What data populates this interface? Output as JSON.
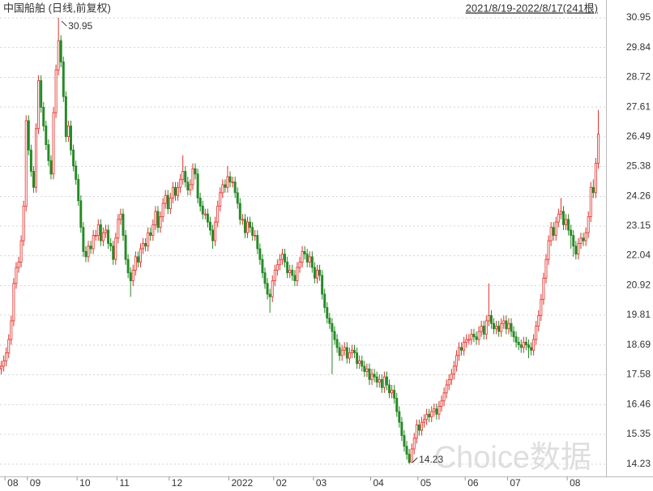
{
  "chart_data": {
    "type": "candlestick",
    "title": "中国船舶 (日线,前复权)",
    "subtitle": "2021/8/19-2022/8/17(241根)",
    "watermark": "Choice数据",
    "up_color": "#e0302a",
    "down_color": "#268a26",
    "grid": true,
    "ylim": [
      13.77,
      31.62
    ],
    "yticks": [
      14.23,
      15.35,
      16.46,
      17.58,
      18.69,
      19.81,
      20.92,
      22.04,
      23.15,
      24.26,
      25.38,
      26.49,
      27.61,
      28.72,
      29.84,
      30.95
    ],
    "xlim": [
      0,
      241
    ],
    "xticks": [
      {
        "value": 2,
        "label": "08"
      },
      {
        "value": 11,
        "label": "09"
      },
      {
        "value": 31,
        "label": "10"
      },
      {
        "value": 47,
        "label": "11"
      },
      {
        "value": 68,
        "label": "12"
      },
      {
        "value": 92,
        "label": "2022"
      },
      {
        "value": 110,
        "label": "02"
      },
      {
        "value": 126,
        "label": "03"
      },
      {
        "value": 149,
        "label": "04"
      },
      {
        "value": 168,
        "label": "05"
      },
      {
        "value": 187,
        "label": "06"
      },
      {
        "value": 204,
        "label": "07"
      },
      {
        "value": 228,
        "label": "08"
      }
    ],
    "annotations": [
      {
        "label": "30.95"
      },
      {
        "label": "14.23"
      }
    ],
    "candles": [
      [
        17.8,
        18.1,
        17.6,
        17.9
      ],
      [
        17.9,
        18.3,
        17.7,
        18.1
      ],
      [
        18.1,
        18.6,
        17.9,
        18.4
      ],
      [
        18.4,
        19.1,
        18.2,
        18.9
      ],
      [
        18.9,
        19.8,
        18.7,
        19.6
      ],
      [
        19.6,
        21.2,
        19.4,
        21.0
      ],
      [
        21.0,
        21.8,
        20.8,
        21.6
      ],
      [
        21.6,
        22.0,
        21.4,
        21.8
      ],
      [
        21.8,
        22.8,
        21.6,
        22.6
      ],
      [
        22.6,
        24.1,
        22.4,
        23.9
      ],
      [
        23.9,
        27.3,
        23.7,
        27.1
      ],
      [
        27.1,
        27.3,
        25.8,
        26.0
      ],
      [
        26.0,
        26.2,
        25.0,
        25.2
      ],
      [
        25.2,
        25.4,
        24.4,
        24.6
      ],
      [
        24.6,
        27.0,
        24.4,
        26.8
      ],
      [
        26.8,
        28.8,
        26.6,
        28.6
      ],
      [
        28.6,
        28.8,
        27.4,
        27.6
      ],
      [
        27.6,
        27.8,
        26.7,
        26.9
      ],
      [
        26.9,
        27.1,
        26.0,
        26.2
      ],
      [
        26.2,
        26.4,
        25.4,
        25.6
      ],
      [
        25.6,
        25.8,
        24.9,
        25.1
      ],
      [
        25.1,
        27.6,
        24.9,
        27.4
      ],
      [
        27.4,
        29.2,
        27.2,
        29.0
      ],
      [
        29.0,
        30.95,
        28.8,
        30.1
      ],
      [
        30.1,
        30.3,
        29.1,
        29.3
      ],
      [
        29.3,
        29.5,
        27.8,
        28.0
      ],
      [
        28.0,
        28.2,
        26.3,
        26.5
      ],
      [
        26.5,
        27.1,
        26.3,
        26.9
      ],
      [
        26.9,
        27.1,
        25.8,
        26.0
      ],
      [
        26.0,
        26.2,
        25.2,
        25.4
      ],
      [
        25.4,
        25.6,
        24.7,
        24.9
      ],
      [
        24.9,
        25.1,
        23.9,
        24.1
      ],
      [
        24.1,
        24.3,
        22.9,
        23.1
      ],
      [
        23.1,
        23.3,
        22.0,
        22.2
      ],
      [
        22.2,
        22.4,
        21.8,
        22.0
      ],
      [
        22.0,
        22.6,
        21.8,
        22.4
      ],
      [
        22.4,
        22.6,
        22.1,
        22.3
      ],
      [
        22.3,
        23.0,
        22.1,
        22.8
      ],
      [
        22.8,
        23.0,
        22.6,
        22.8
      ],
      [
        22.8,
        23.4,
        22.6,
        23.2
      ],
      [
        23.2,
        23.4,
        22.4,
        22.6
      ],
      [
        22.6,
        23.1,
        22.4,
        22.9
      ],
      [
        22.9,
        23.2,
        22.7,
        23.0
      ],
      [
        23.0,
        23.2,
        22.3,
        22.5
      ],
      [
        22.5,
        22.7,
        22.2,
        22.4
      ],
      [
        22.4,
        22.6,
        21.7,
        21.9
      ],
      [
        21.9,
        22.9,
        21.7,
        22.7
      ],
      [
        22.7,
        23.6,
        22.5,
        23.4
      ],
      [
        23.4,
        23.8,
        23.2,
        23.6
      ],
      [
        23.6,
        23.8,
        22.6,
        22.8
      ],
      [
        22.8,
        23.0,
        21.7,
        21.9
      ],
      [
        21.9,
        22.1,
        21.2,
        21.4
      ],
      [
        21.4,
        21.6,
        20.5,
        21.1
      ],
      [
        21.1,
        21.7,
        20.9,
        21.5
      ],
      [
        21.5,
        22.2,
        21.3,
        22.0
      ],
      [
        22.0,
        22.2,
        21.6,
        21.8
      ],
      [
        21.8,
        22.5,
        21.6,
        22.3
      ],
      [
        22.3,
        22.7,
        22.1,
        22.5
      ],
      [
        22.5,
        22.7,
        22.2,
        22.4
      ],
      [
        22.4,
        23.1,
        22.2,
        22.9
      ],
      [
        22.9,
        23.1,
        22.6,
        22.8
      ],
      [
        22.8,
        23.4,
        22.6,
        23.2
      ],
      [
        23.2,
        23.9,
        23.0,
        23.7
      ],
      [
        23.7,
        23.9,
        22.9,
        23.1
      ],
      [
        23.1,
        23.7,
        22.9,
        23.5
      ],
      [
        23.5,
        24.2,
        23.3,
        24.0
      ],
      [
        24.0,
        24.5,
        23.8,
        24.3
      ],
      [
        24.3,
        24.5,
        23.6,
        23.8
      ],
      [
        23.8,
        24.4,
        23.6,
        24.2
      ],
      [
        24.2,
        24.8,
        24.0,
        24.6
      ],
      [
        24.6,
        24.8,
        24.1,
        24.3
      ],
      [
        24.3,
        24.8,
        24.1,
        24.6
      ],
      [
        24.6,
        25.1,
        24.4,
        24.9
      ],
      [
        24.9,
        25.8,
        24.7,
        25.2
      ],
      [
        25.2,
        25.4,
        24.6,
        24.8
      ],
      [
        24.8,
        25.0,
        24.3,
        24.5
      ],
      [
        24.5,
        24.9,
        24.3,
        24.7
      ],
      [
        24.7,
        25.5,
        24.5,
        25.3
      ],
      [
        25.3,
        25.5,
        24.9,
        25.1
      ],
      [
        25.1,
        25.3,
        24.0,
        24.2
      ],
      [
        24.2,
        24.4,
        23.7,
        23.9
      ],
      [
        23.9,
        24.1,
        23.4,
        23.6
      ],
      [
        23.6,
        23.8,
        23.4,
        23.6
      ],
      [
        23.6,
        23.8,
        23.1,
        23.3
      ],
      [
        23.3,
        23.5,
        22.8,
        23.0
      ],
      [
        23.0,
        23.2,
        22.3,
        22.6
      ],
      [
        22.6,
        23.5,
        22.4,
        23.3
      ],
      [
        23.3,
        24.1,
        23.1,
        23.9
      ],
      [
        23.9,
        24.6,
        23.7,
        24.4
      ],
      [
        24.4,
        24.9,
        24.2,
        24.7
      ],
      [
        24.7,
        24.9,
        24.4,
        24.6
      ],
      [
        24.6,
        25.4,
        24.4,
        25.0
      ],
      [
        25.0,
        25.2,
        24.6,
        24.8
      ],
      [
        24.8,
        25.0,
        24.6,
        24.8
      ],
      [
        24.8,
        25.0,
        24.2,
        24.4
      ],
      [
        24.4,
        24.6,
        23.8,
        24.0
      ],
      [
        24.0,
        24.2,
        23.2,
        23.4
      ],
      [
        23.4,
        23.6,
        23.2,
        23.4
      ],
      [
        23.4,
        23.6,
        22.7,
        22.9
      ],
      [
        22.9,
        23.5,
        22.7,
        23.3
      ],
      [
        23.3,
        23.5,
        22.9,
        23.1
      ],
      [
        23.1,
        23.3,
        22.6,
        22.8
      ],
      [
        22.8,
        23.0,
        22.6,
        22.8
      ],
      [
        22.8,
        23.0,
        22.1,
        22.3
      ],
      [
        22.3,
        22.5,
        21.7,
        21.9
      ],
      [
        21.9,
        22.1,
        21.2,
        21.4
      ],
      [
        21.4,
        21.6,
        20.8,
        21.0
      ],
      [
        21.0,
        21.2,
        20.4,
        20.6
      ],
      [
        20.6,
        20.8,
        19.9,
        20.5
      ],
      [
        20.5,
        21.3,
        20.3,
        21.1
      ],
      [
        21.1,
        21.7,
        20.9,
        21.5
      ],
      [
        21.5,
        21.9,
        21.3,
        21.7
      ],
      [
        21.7,
        22.1,
        21.5,
        21.9
      ],
      [
        21.9,
        22.3,
        21.7,
        22.1
      ],
      [
        22.1,
        22.3,
        21.6,
        21.8
      ],
      [
        21.8,
        22.0,
        21.2,
        21.4
      ],
      [
        21.4,
        21.7,
        21.2,
        21.5
      ],
      [
        21.5,
        21.7,
        21.1,
        21.3
      ],
      [
        21.3,
        21.5,
        20.9,
        21.1
      ],
      [
        21.1,
        21.8,
        20.9,
        21.6
      ],
      [
        21.6,
        22.0,
        21.4,
        21.8
      ],
      [
        21.8,
        22.4,
        21.6,
        22.2
      ],
      [
        22.2,
        22.4,
        21.9,
        22.1
      ],
      [
        22.1,
        22.3,
        21.6,
        21.8
      ],
      [
        21.8,
        22.2,
        21.6,
        22.0
      ],
      [
        22.0,
        22.2,
        21.4,
        21.6
      ],
      [
        21.6,
        21.8,
        21.0,
        21.2
      ],
      [
        21.2,
        21.7,
        21.0,
        21.5
      ],
      [
        21.5,
        21.7,
        21.1,
        21.3
      ],
      [
        21.3,
        21.5,
        20.4,
        20.6
      ],
      [
        20.6,
        20.8,
        19.9,
        20.1
      ],
      [
        20.1,
        20.3,
        19.5,
        19.7
      ],
      [
        19.7,
        19.9,
        19.3,
        19.5
      ],
      [
        19.5,
        19.7,
        17.6,
        19.2
      ],
      [
        19.2,
        19.4,
        18.7,
        18.9
      ],
      [
        18.9,
        19.1,
        18.4,
        18.6
      ],
      [
        18.6,
        18.8,
        18.1,
        18.3
      ],
      [
        18.3,
        18.7,
        18.1,
        18.5
      ],
      [
        18.5,
        18.8,
        18.3,
        18.6
      ],
      [
        18.6,
        18.8,
        18.0,
        18.2
      ],
      [
        18.2,
        18.6,
        18.0,
        18.4
      ],
      [
        18.4,
        18.7,
        18.2,
        18.5
      ],
      [
        18.5,
        18.7,
        18.2,
        18.4
      ],
      [
        18.4,
        18.6,
        17.8,
        18.0
      ],
      [
        18.0,
        18.3,
        17.8,
        18.1
      ],
      [
        18.1,
        18.3,
        17.7,
        17.9
      ],
      [
        17.9,
        18.1,
        17.5,
        17.7
      ],
      [
        17.7,
        18.0,
        17.5,
        17.8
      ],
      [
        17.8,
        18.0,
        17.2,
        17.4
      ],
      [
        17.4,
        17.8,
        17.2,
        17.6
      ],
      [
        17.6,
        17.8,
        17.3,
        17.5
      ],
      [
        17.5,
        17.7,
        17.1,
        17.3
      ],
      [
        17.3,
        17.6,
        17.1,
        17.4
      ],
      [
        17.4,
        17.6,
        16.9,
        17.1
      ],
      [
        17.1,
        17.7,
        16.9,
        17.5
      ],
      [
        17.5,
        17.7,
        17.0,
        17.2
      ],
      [
        17.2,
        17.4,
        16.7,
        16.9
      ],
      [
        16.9,
        17.2,
        16.7,
        17.0
      ],
      [
        17.0,
        17.2,
        16.5,
        16.7
      ],
      [
        16.7,
        16.9,
        16.0,
        16.2
      ],
      [
        16.2,
        16.4,
        15.6,
        15.8
      ],
      [
        15.8,
        16.0,
        15.1,
        15.3
      ],
      [
        15.3,
        15.5,
        14.7,
        14.9
      ],
      [
        14.9,
        15.1,
        14.4,
        14.6
      ],
      [
        14.6,
        14.8,
        14.23,
        14.3
      ],
      [
        14.3,
        15.0,
        14.3,
        14.8
      ],
      [
        14.8,
        15.4,
        14.6,
        15.2
      ],
      [
        15.2,
        15.9,
        15.0,
        15.7
      ],
      [
        15.7,
        15.9,
        15.3,
        15.5
      ],
      [
        15.5,
        16.0,
        15.3,
        15.8
      ],
      [
        15.8,
        16.1,
        15.6,
        15.9
      ],
      [
        15.9,
        16.3,
        15.7,
        16.1
      ],
      [
        16.1,
        16.3,
        15.8,
        16.0
      ],
      [
        16.0,
        16.4,
        15.8,
        16.2
      ],
      [
        16.2,
        16.5,
        16.0,
        16.3
      ],
      [
        16.3,
        16.5,
        15.9,
        16.1
      ],
      [
        16.1,
        16.6,
        15.9,
        16.4
      ],
      [
        16.4,
        16.8,
        16.2,
        16.6
      ],
      [
        16.6,
        17.1,
        16.4,
        16.9
      ],
      [
        16.9,
        17.4,
        16.7,
        17.2
      ],
      [
        17.2,
        17.6,
        17.0,
        17.4
      ],
      [
        17.4,
        17.8,
        17.2,
        17.6
      ],
      [
        17.6,
        18.1,
        17.4,
        17.9
      ],
      [
        17.9,
        18.5,
        17.7,
        18.3
      ],
      [
        18.3,
        18.8,
        18.1,
        18.6
      ],
      [
        18.6,
        18.8,
        18.3,
        18.5
      ],
      [
        18.5,
        19.0,
        18.3,
        18.8
      ],
      [
        18.8,
        19.1,
        18.6,
        18.9
      ],
      [
        18.9,
        19.1,
        18.7,
        18.9
      ],
      [
        18.9,
        19.3,
        18.7,
        19.1
      ],
      [
        19.1,
        19.3,
        18.8,
        19.0
      ],
      [
        19.0,
        19.2,
        18.7,
        18.9
      ],
      [
        18.9,
        19.4,
        18.7,
        19.2
      ],
      [
        19.2,
        19.6,
        19.0,
        19.4
      ],
      [
        19.4,
        19.6,
        18.9,
        19.1
      ],
      [
        19.1,
        19.8,
        18.9,
        19.6
      ],
      [
        19.6,
        21.0,
        19.4,
        19.8
      ],
      [
        19.8,
        20.0,
        19.3,
        19.5
      ],
      [
        19.5,
        19.7,
        19.1,
        19.3
      ],
      [
        19.3,
        19.6,
        19.1,
        19.4
      ],
      [
        19.4,
        19.6,
        19.0,
        19.2
      ],
      [
        19.2,
        19.7,
        19.0,
        19.5
      ],
      [
        19.5,
        19.8,
        19.3,
        19.6
      ],
      [
        19.6,
        19.8,
        19.1,
        19.3
      ],
      [
        19.3,
        19.7,
        19.1,
        19.5
      ],
      [
        19.5,
        19.7,
        19.0,
        19.2
      ],
      [
        19.2,
        19.4,
        18.8,
        19.0
      ],
      [
        19.0,
        19.2,
        18.6,
        18.8
      ],
      [
        18.8,
        19.0,
        18.5,
        18.7
      ],
      [
        18.7,
        18.9,
        18.4,
        18.6
      ],
      [
        18.6,
        19.0,
        18.4,
        18.8
      ],
      [
        18.8,
        19.0,
        18.5,
        18.7
      ],
      [
        18.7,
        18.9,
        18.2,
        18.6
      ],
      [
        18.6,
        18.8,
        18.3,
        18.5
      ],
      [
        18.5,
        19.1,
        18.3,
        18.9
      ],
      [
        18.9,
        19.6,
        18.7,
        19.4
      ],
      [
        19.4,
        20.0,
        19.2,
        19.8
      ],
      [
        19.8,
        20.6,
        19.6,
        20.4
      ],
      [
        20.4,
        21.4,
        20.2,
        21.2
      ],
      [
        21.2,
        22.1,
        21.0,
        21.9
      ],
      [
        21.9,
        22.8,
        21.7,
        22.6
      ],
      [
        22.6,
        23.3,
        22.4,
        23.1
      ],
      [
        23.1,
        23.3,
        22.6,
        22.8
      ],
      [
        22.8,
        23.5,
        22.6,
        23.3
      ],
      [
        23.3,
        23.8,
        23.1,
        23.6
      ],
      [
        23.6,
        24.2,
        23.4,
        23.7
      ],
      [
        23.7,
        23.9,
        23.0,
        23.2
      ],
      [
        23.2,
        23.6,
        23.0,
        23.4
      ],
      [
        23.4,
        23.6,
        22.8,
        23.0
      ],
      [
        23.0,
        23.2,
        22.3,
        22.8
      ],
      [
        22.8,
        23.0,
        22.0,
        22.4
      ],
      [
        22.4,
        22.6,
        21.9,
        22.1
      ],
      [
        22.1,
        22.7,
        21.9,
        22.5
      ],
      [
        22.5,
        22.9,
        22.3,
        22.7
      ],
      [
        22.7,
        22.9,
        22.4,
        22.6
      ],
      [
        22.6,
        23.1,
        22.4,
        22.9
      ],
      [
        22.9,
        23.7,
        22.7,
        23.5
      ],
      [
        23.5,
        24.8,
        23.3,
        24.6
      ],
      [
        24.6,
        24.9,
        24.2,
        24.4
      ],
      [
        24.4,
        25.7,
        24.2,
        25.5
      ],
      [
        25.5,
        27.5,
        25.3,
        26.6
      ]
    ]
  }
}
